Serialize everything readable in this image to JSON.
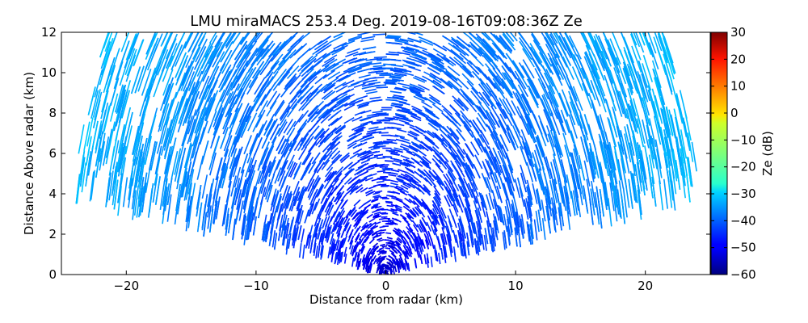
{
  "chart_data": {
    "type": "heatmap",
    "title": "LMU miraMACS 253.4 Deg. 2019-08-16T09:08:36Z  Ze",
    "xlabel": "Distance from radar (km)",
    "ylabel": "Distance Above radar  (km)",
    "xlim": [
      -25,
      25
    ],
    "ylim": [
      0,
      12
    ],
    "xticks": [
      -20,
      -10,
      0,
      10,
      20
    ],
    "xtick_labels": [
      "−20",
      "−10",
      "0",
      "10",
      "20"
    ],
    "yticks": [
      0,
      2,
      4,
      6,
      8,
      10,
      12
    ],
    "ytick_labels": [
      "0",
      "2",
      "4",
      "6",
      "8",
      "10",
      "12"
    ],
    "grid": false,
    "scan": {
      "azimuth_deg": 253.4,
      "timestamp": "2019-08-16T09:08:36Z",
      "max_range_km": 24.5,
      "elevation_min_deg": 10,
      "elevation_max_deg": 170
    },
    "field": {
      "description": "Ze values: about -55 dB at the radar origin, rising to about -32 dB at the far range",
      "near_range_ze_db": -55,
      "far_range_ze_db": -32
    },
    "colorbar": {
      "label": "Ze (dB)",
      "range": [
        -60,
        30
      ],
      "ticks": [
        -60,
        -50,
        -40,
        -30,
        -20,
        -10,
        0,
        10,
        20,
        30
      ],
      "tick_labels": [
        "−60",
        "−50",
        "−40",
        "−30",
        "−20",
        "−10",
        "0",
        "10",
        "20",
        "30"
      ],
      "colormap": "jet"
    }
  }
}
